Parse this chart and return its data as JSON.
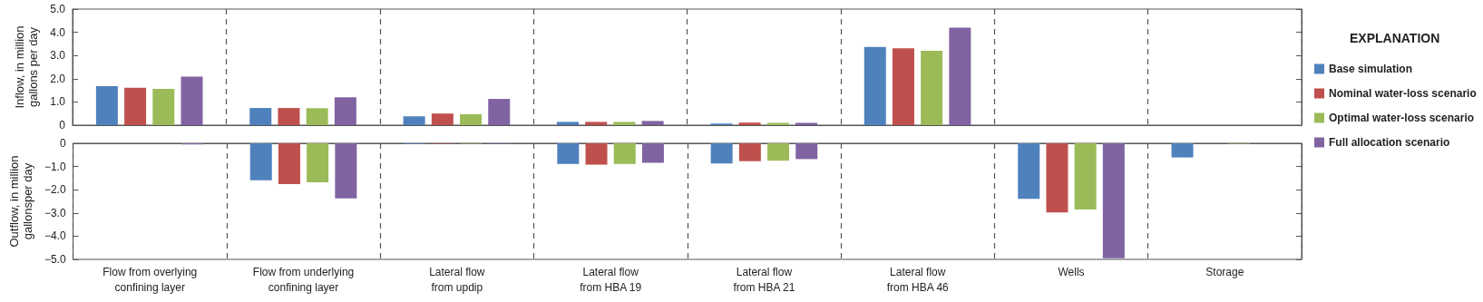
{
  "chart_data": [
    {
      "type": "bar",
      "ylabel": "Inflow, in million\ngallons per day",
      "legend_title": "EXPLANATION",
      "legend": "right",
      "grid": "x",
      "tick_labels": "y",
      "categories": [
        null,
        null,
        null,
        null,
        null,
        null,
        null,
        null
      ],
      "ylim": [
        0,
        5
      ],
      "yticks": [
        0,
        {
          "value": 1,
          "label": "1.0"
        },
        {
          "value": 2,
          "label": "2.0"
        },
        {
          "value": 3,
          "label": "3.0"
        },
        {
          "value": 4,
          "label": "4.0"
        },
        {
          "value": 5,
          "label": "5.0"
        }
      ],
      "series": [
        {
          "name": "Base simulation",
          "color": "#4f81bd",
          "values": [
            1.68,
            0.74,
            0.38,
            0.14,
            0.07,
            3.37,
            0,
            0
          ]
        },
        {
          "name": "Nominal water-loss scenario",
          "color": "#c0504d",
          "values": [
            1.61,
            0.74,
            0.5,
            0.14,
            0.11,
            3.31,
            0,
            0
          ]
        },
        {
          "name": "Optimal water-loss scenario",
          "color": "#9bbb59",
          "values": [
            1.56,
            0.73,
            0.47,
            0.14,
            0.1,
            3.2,
            0,
            0
          ]
        },
        {
          "name": "Full allocation scenario",
          "color": "#8064a2",
          "values": [
            2.09,
            1.2,
            1.13,
            0.18,
            0.1,
            4.2,
            0,
            0
          ]
        }
      ]
    },
    {
      "type": "bar",
      "ylabel": "Outflow, in million\ngallonsper day",
      "grid": "x",
      "categories": [
        "Flow from overlying\nconfining layer",
        "Flow from underlying\nconfining layer",
        "Lateral flow\nfrom updip",
        "Lateral flow\nfrom HBA 19",
        "Lateral flow\nfrom HBA 21",
        "Lateral flow\nfrom HBA 46",
        "Wells",
        "Storage"
      ],
      "ylim": [
        -5,
        0
      ],
      "yticks": [
        {
          "value": -5,
          "label": "−5.0"
        },
        {
          "value": -4,
          "label": "−4.0"
        },
        {
          "value": -3,
          "label": "−3.0"
        },
        {
          "value": -2,
          "label": "−2.0"
        },
        {
          "value": -1,
          "label": "−1.0"
        },
        0
      ],
      "series": [
        {
          "color": "#4f81bd",
          "values": [
            0,
            -1.59,
            -0.03,
            -0.89,
            -0.87,
            0,
            -2.39,
            -0.61
          ]
        },
        {
          "color": "#c0504d",
          "values": [
            0,
            -1.76,
            -0.02,
            -0.92,
            -0.77,
            0,
            -2.98,
            0
          ]
        },
        {
          "color": "#9bbb59",
          "values": [
            0,
            -1.68,
            -0.02,
            -0.89,
            -0.75,
            0,
            -2.85,
            -0.02
          ]
        },
        {
          "color": "#8064a2",
          "values": [
            -0.05,
            -2.37,
            -0.02,
            -0.84,
            -0.68,
            0,
            -4.95,
            0
          ]
        }
      ]
    }
  ]
}
